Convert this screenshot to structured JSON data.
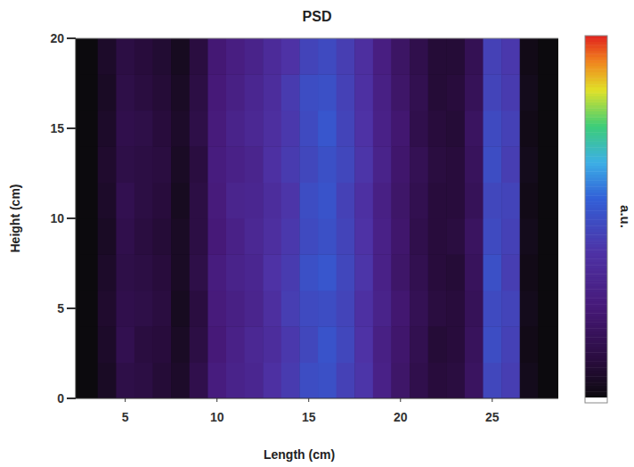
{
  "chart_data": {
    "type": "heatmap",
    "title": "PSD",
    "x_label": "Length (cm)",
    "y_label": "Height (cm)",
    "xlim": [
      2.3,
      28.6
    ],
    "ylim": [
      0,
      20
    ],
    "xticks": [
      5,
      10,
      15,
      20,
      25
    ],
    "yticks": [
      0,
      5,
      10,
      15,
      20
    ],
    "x_edges": [
      2.5,
      3.5,
      4.5,
      5.5,
      6.5,
      7.5,
      8.5,
      9.5,
      10.5,
      11.5,
      12.5,
      13.5,
      14.5,
      15.5,
      16.5,
      17.5,
      18.5,
      19.5,
      20.5,
      21.5,
      22.5,
      23.5,
      24.5,
      25.5,
      26.5,
      27.5,
      28.5
    ],
    "y_edges": [
      0,
      2,
      4,
      6,
      8,
      10,
      12,
      14,
      16,
      18,
      20
    ],
    "values": [
      [
        0,
        0.05,
        0.13,
        0.12,
        0.09,
        0.06,
        0.14,
        0.27,
        0.31,
        0.33,
        0.39,
        0.43,
        0.49,
        0.5,
        0.45,
        0.41,
        0.3,
        0.21,
        0.14,
        0.1,
        0.11,
        0.19,
        0.47,
        0.44,
        0.03,
        0
      ],
      [
        0,
        0.06,
        0.15,
        0.11,
        0.1,
        0.05,
        0.12,
        0.25,
        0.3,
        0.34,
        0.37,
        0.42,
        0.47,
        0.51,
        0.47,
        0.4,
        0.29,
        0.22,
        0.15,
        0.09,
        0.1,
        0.18,
        0.49,
        0.45,
        0.02,
        0
      ],
      [
        0,
        0.07,
        0.14,
        0.13,
        0.11,
        0.04,
        0.11,
        0.26,
        0.29,
        0.32,
        0.38,
        0.44,
        0.48,
        0.49,
        0.46,
        0.39,
        0.31,
        0.23,
        0.16,
        0.11,
        0.1,
        0.17,
        0.48,
        0.46,
        0.03,
        0
      ],
      [
        0,
        0.06,
        0.13,
        0.12,
        0.1,
        0.05,
        0.13,
        0.27,
        0.31,
        0.33,
        0.4,
        0.43,
        0.5,
        0.52,
        0.47,
        0.41,
        0.3,
        0.21,
        0.15,
        0.1,
        0.09,
        0.18,
        0.5,
        0.44,
        0.02,
        0
      ],
      [
        0,
        0.05,
        0.14,
        0.11,
        0.09,
        0.05,
        0.12,
        0.25,
        0.3,
        0.34,
        0.38,
        0.42,
        0.48,
        0.5,
        0.46,
        0.4,
        0.3,
        0.22,
        0.14,
        0.1,
        0.11,
        0.19,
        0.48,
        0.45,
        0.03,
        0
      ],
      [
        0,
        0.06,
        0.15,
        0.12,
        0.1,
        0.04,
        0.12,
        0.26,
        0.32,
        0.33,
        0.37,
        0.41,
        0.49,
        0.51,
        0.45,
        0.39,
        0.29,
        0.21,
        0.15,
        0.1,
        0.1,
        0.17,
        0.47,
        0.46,
        0.02,
        0
      ],
      [
        0,
        0.07,
        0.13,
        0.12,
        0.11,
        0.05,
        0.11,
        0.27,
        0.3,
        0.32,
        0.39,
        0.43,
        0.47,
        0.5,
        0.47,
        0.41,
        0.31,
        0.22,
        0.16,
        0.11,
        0.1,
        0.18,
        0.49,
        0.44,
        0.03,
        0
      ],
      [
        0,
        0.06,
        0.14,
        0.13,
        0.1,
        0.06,
        0.13,
        0.26,
        0.31,
        0.34,
        0.38,
        0.42,
        0.48,
        0.52,
        0.46,
        0.4,
        0.3,
        0.23,
        0.14,
        0.1,
        0.09,
        0.19,
        0.48,
        0.45,
        0.02,
        0
      ],
      [
        0,
        0.05,
        0.13,
        0.11,
        0.09,
        0.05,
        0.12,
        0.25,
        0.29,
        0.33,
        0.37,
        0.43,
        0.49,
        0.5,
        0.45,
        0.39,
        0.29,
        0.21,
        0.15,
        0.09,
        0.1,
        0.17,
        0.46,
        0.43,
        0.03,
        0
      ],
      [
        0,
        0.06,
        0.12,
        0.1,
        0.08,
        0.04,
        0.11,
        0.24,
        0.28,
        0.31,
        0.36,
        0.4,
        0.46,
        0.48,
        0.44,
        0.38,
        0.28,
        0.2,
        0.14,
        0.09,
        0.09,
        0.16,
        0.45,
        0.42,
        0.02,
        0
      ]
    ],
    "colorbar": {
      "label": "a.u.",
      "range": [
        0,
        1
      ]
    }
  }
}
